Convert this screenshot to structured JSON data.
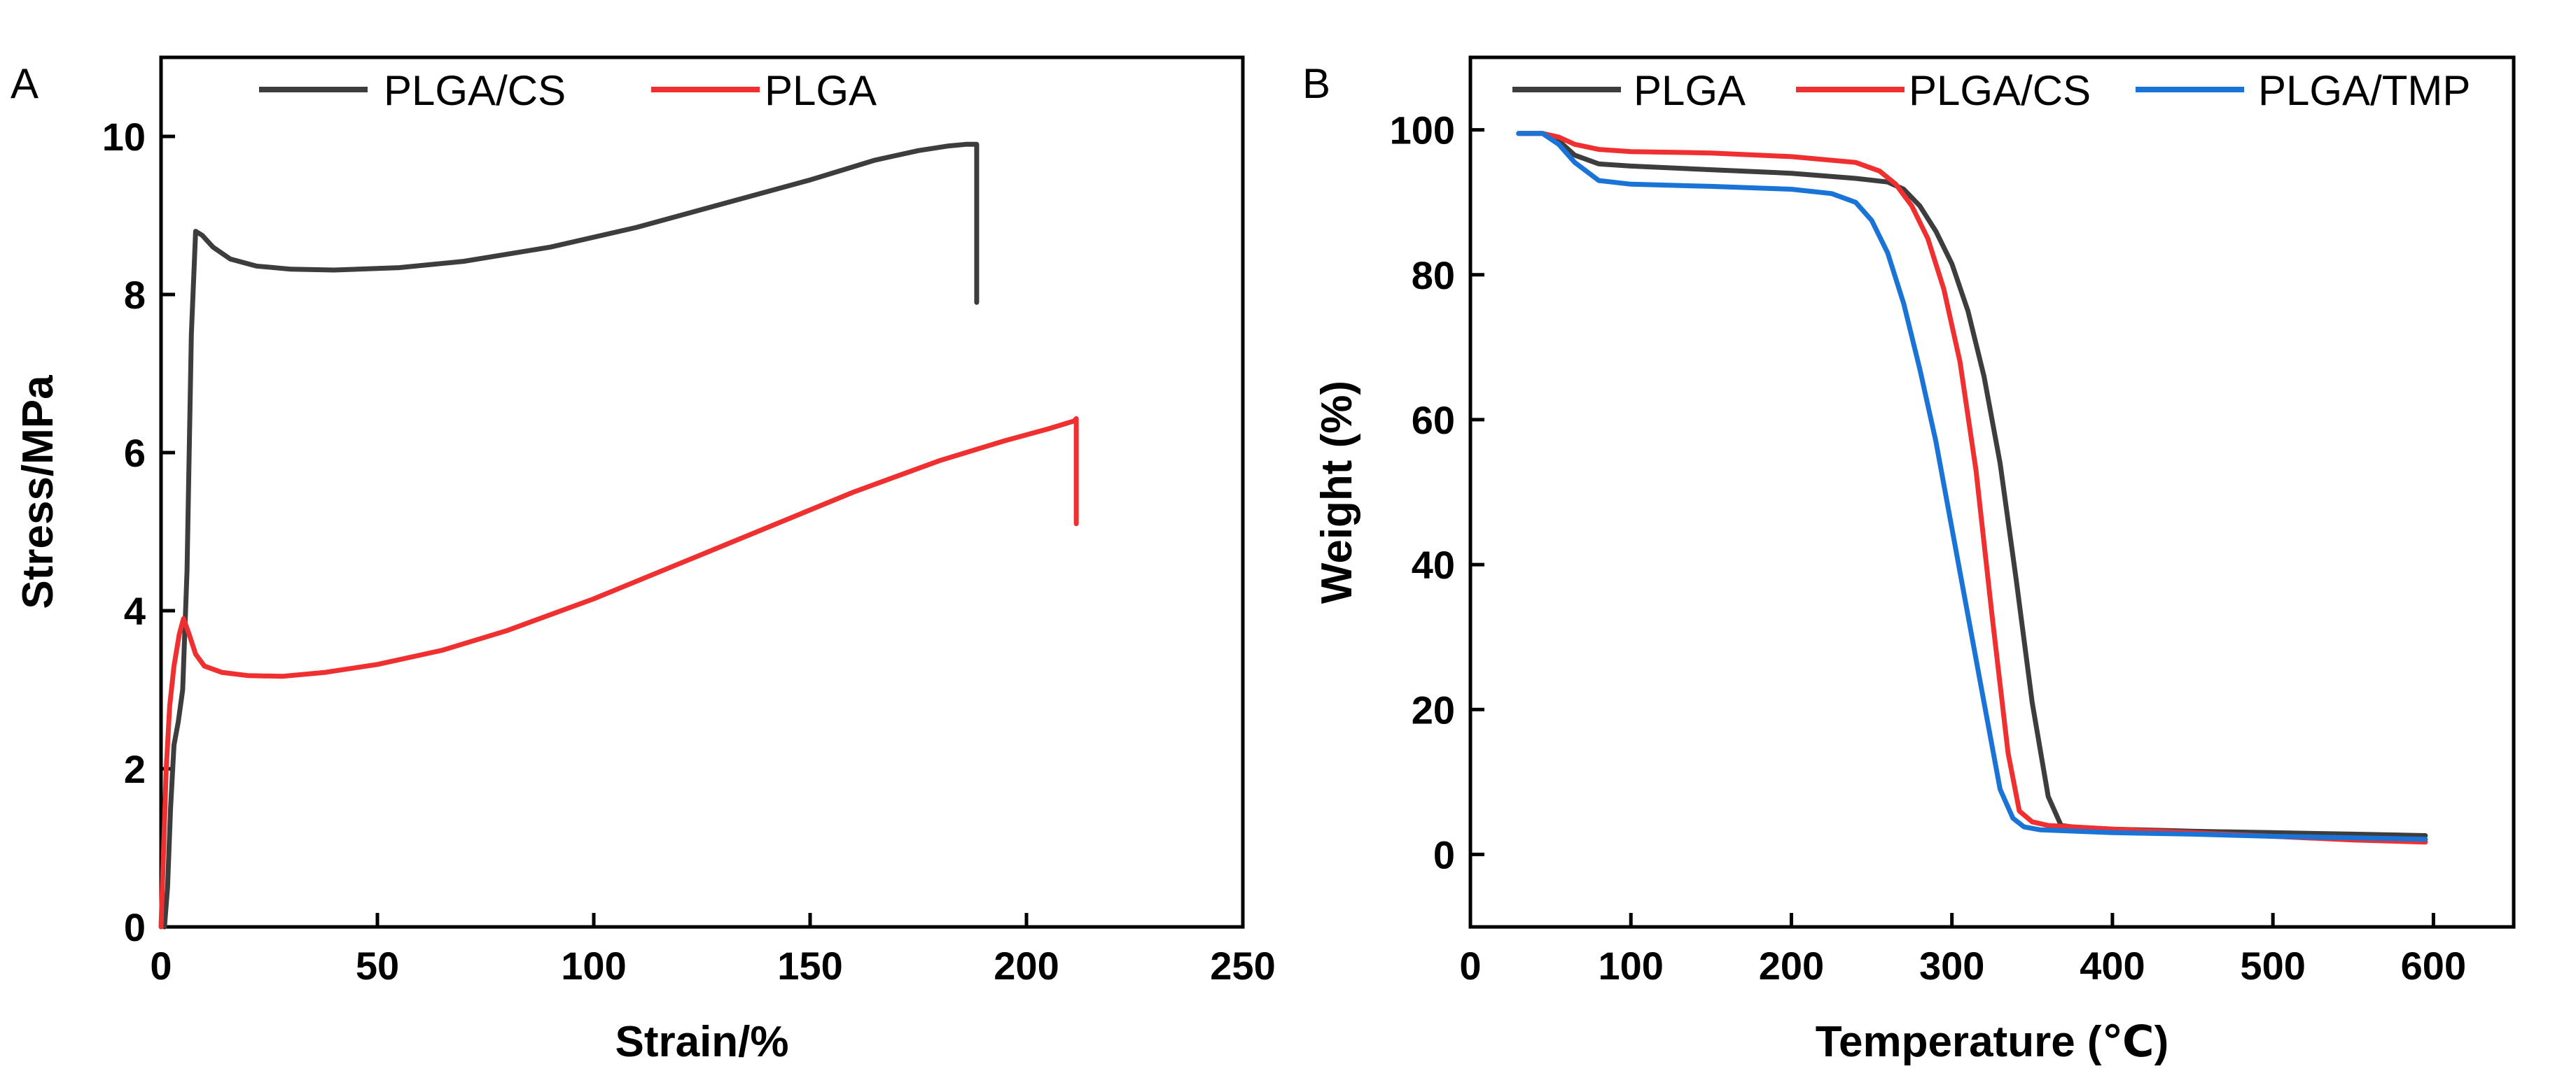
{
  "chart_data": [
    {
      "panel": "A",
      "type": "line",
      "xlabel": "Strain/%",
      "ylabel": "Stress/MPa",
      "xlim": [
        0,
        250
      ],
      "ylim": [
        0,
        11
      ],
      "xticks": [
        0,
        50,
        100,
        150,
        200,
        250
      ],
      "yticks": [
        0,
        2,
        4,
        6,
        8,
        10
      ],
      "legend_position": "top",
      "series": [
        {
          "name": "PLGA/CS",
          "color": "#3d3d3d",
          "x": [
            0.8,
            1.5,
            2.2,
            3.0,
            4.0,
            5.0,
            6.0,
            7.0,
            8.0,
            9.5,
            12,
            16,
            22,
            30,
            40,
            55,
            70,
            90,
            110,
            130,
            150,
            165,
            175,
            182,
            186,
            188.5,
            188.5
          ],
          "y": [
            0,
            0.5,
            1.5,
            2.3,
            2.6,
            3.0,
            4.5,
            7.5,
            8.8,
            8.75,
            8.6,
            8.45,
            8.36,
            8.32,
            8.31,
            8.34,
            8.42,
            8.6,
            8.85,
            9.15,
            9.45,
            9.7,
            9.82,
            9.88,
            9.9,
            9.9,
            7.9
          ]
        },
        {
          "name": "PLGA",
          "color": "#f03030",
          "x": [
            0,
            0.6,
            1.2,
            2.0,
            3.0,
            4.2,
            5.2,
            6.5,
            8.0,
            10,
            14,
            20,
            28,
            38,
            50,
            65,
            80,
            100,
            120,
            140,
            160,
            180,
            195,
            205,
            211,
            211.5,
            211.5
          ],
          "y": [
            0,
            1.0,
            2.0,
            2.8,
            3.3,
            3.7,
            3.9,
            3.7,
            3.45,
            3.3,
            3.22,
            3.18,
            3.17,
            3.22,
            3.32,
            3.5,
            3.75,
            4.15,
            4.6,
            5.05,
            5.5,
            5.9,
            6.15,
            6.3,
            6.4,
            6.43,
            5.1
          ]
        }
      ]
    },
    {
      "panel": "B",
      "type": "line",
      "xlabel": "Temperature (℃)",
      "ylabel": "Weight (%)",
      "xlim": [
        0,
        650
      ],
      "ylim": [
        -10,
        110
      ],
      "xticks": [
        0,
        100,
        200,
        300,
        400,
        500,
        600
      ],
      "yticks": [
        0,
        20,
        40,
        60,
        80,
        100
      ],
      "legend_position": "top",
      "series": [
        {
          "name": "PLGA",
          "color": "#3d3d3d",
          "x": [
            30,
            45,
            55,
            65,
            80,
            100,
            150,
            200,
            240,
            260,
            270,
            280,
            290,
            300,
            310,
            320,
            330,
            340,
            350,
            360,
            368,
            375,
            400,
            450,
            500,
            550,
            595
          ],
          "y": [
            99.5,
            99.5,
            98.5,
            96.5,
            95.3,
            95,
            94.5,
            94,
            93.3,
            92.8,
            91.8,
            89.5,
            86,
            81.5,
            75,
            66,
            54,
            38,
            21,
            8,
            4,
            3.8,
            3.5,
            3.2,
            3,
            2.8,
            2.6
          ]
        },
        {
          "name": "PLGA/CS",
          "color": "#f03030",
          "x": [
            30,
            45,
            55,
            65,
            80,
            100,
            150,
            200,
            240,
            255,
            265,
            275,
            285,
            295,
            305,
            315,
            325,
            335,
            342,
            350,
            360,
            400,
            450,
            500,
            550,
            595
          ],
          "y": [
            99.5,
            99.5,
            99,
            98,
            97.3,
            97,
            96.8,
            96.3,
            95.5,
            94.3,
            92.5,
            89.5,
            85,
            78,
            68,
            53,
            33,
            14,
            6,
            4.5,
            4,
            3.5,
            3,
            2.5,
            2,
            1.7
          ]
        },
        {
          "name": "PLGA/TMP",
          "color": "#1a73d6",
          "x": [
            30,
            45,
            55,
            65,
            80,
            100,
            150,
            200,
            225,
            240,
            250,
            260,
            270,
            280,
            290,
            300,
            310,
            320,
            330,
            338,
            345,
            355,
            400,
            450,
            500,
            550,
            595
          ],
          "y": [
            99.5,
            99.5,
            98,
            95.5,
            93,
            92.5,
            92.2,
            91.8,
            91.2,
            90,
            87.5,
            83,
            76,
            67,
            57,
            45,
            33,
            21,
            9,
            5,
            3.8,
            3.4,
            3,
            2.8,
            2.5,
            2.3,
            2.1
          ]
        }
      ]
    }
  ]
}
